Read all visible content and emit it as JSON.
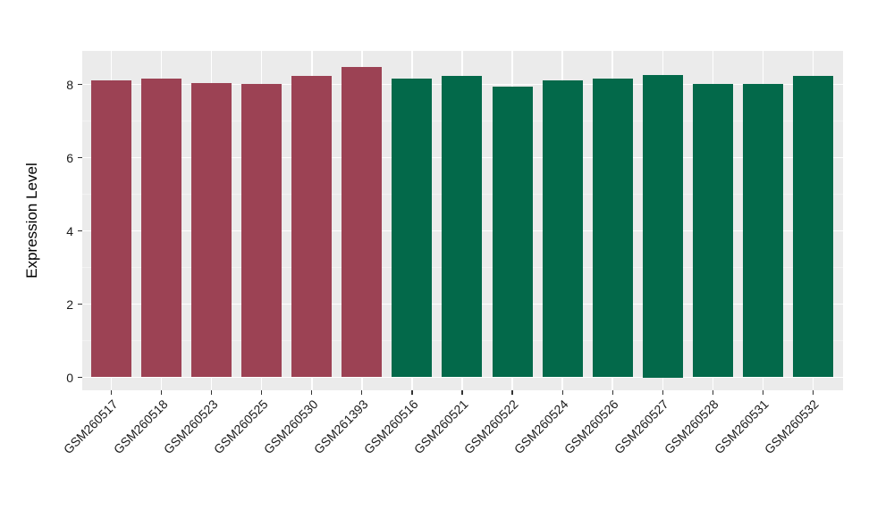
{
  "figure": {
    "background": "#FFFFFF"
  },
  "chart_data": {
    "type": "bar",
    "title": "",
    "xlabel": "",
    "ylabel": "Expression Level",
    "categories": [
      "GSM260517",
      "GSM260518",
      "GSM260523",
      "GSM260525",
      "GSM260530",
      "GSM261393",
      "GSM260516",
      "GSM260521",
      "GSM260522",
      "GSM260524",
      "GSM260526",
      "GSM260527",
      "GSM260528",
      "GSM260531",
      "GSM260532"
    ],
    "values": [
      8.12,
      8.17,
      8.04,
      8.01,
      8.22,
      8.47,
      8.16,
      8.22,
      7.94,
      8.11,
      8.17,
      8.25,
      8.01,
      8.01,
      8.24
    ],
    "groups": [
      "A",
      "A",
      "A",
      "A",
      "A",
      "A",
      "B",
      "B",
      "B",
      "B",
      "B",
      "B",
      "B",
      "B",
      "B"
    ],
    "group_colors": {
      "A": "#9C4254",
      "B": "#03694A"
    },
    "ylim": [
      0,
      8.9
    ],
    "yticks_major": [
      0,
      2,
      4,
      6,
      8
    ],
    "yticks_minor": [
      1,
      3,
      5,
      7
    ],
    "ytick_labels": [
      "0",
      "2",
      "4",
      "6",
      "8"
    ],
    "x_tick_rotation_deg": 45,
    "legend": "none",
    "grid": true,
    "style": {
      "panel_background": "#EBEBEB",
      "grid_major_color": "#FFFFFF",
      "grid_minor_color": "#F3F3F3",
      "tick_color": "#333333",
      "tick_label_color": "#1A1A1A",
      "axis_title_color": "#000000"
    }
  }
}
